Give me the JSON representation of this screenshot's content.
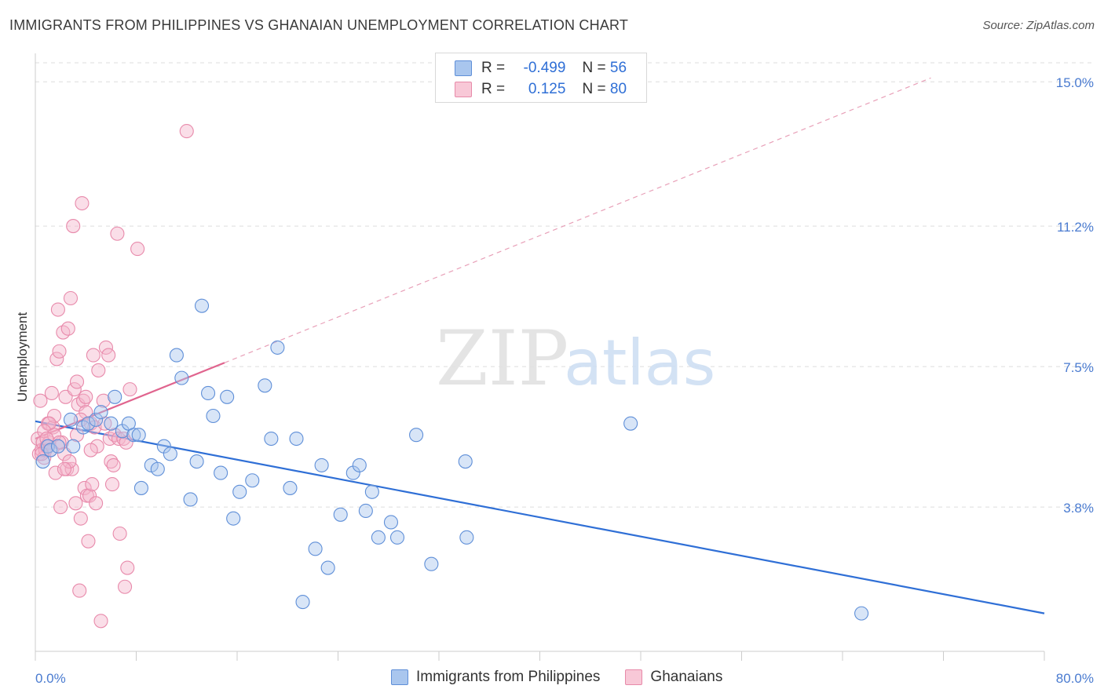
{
  "title": "IMMIGRANTS FROM PHILIPPINES VS GHANAIAN UNEMPLOYMENT CORRELATION CHART",
  "source": "Source: ZipAtlas.com",
  "watermark": {
    "zip": "ZIP",
    "atlas": "atlas"
  },
  "legend": {
    "rows": [
      {
        "r_label": "R =",
        "r_value": "-0.499",
        "n_label": "N =",
        "n_value": "56"
      },
      {
        "r_label": "R =",
        "r_value": "0.125",
        "n_label": "N =",
        "n_value": "80"
      }
    ]
  },
  "colors": {
    "blue": "#2f6fd6",
    "blue_fill": "#a9c6ee",
    "pink": "#e0648e",
    "pink_fill": "#f5b6cb",
    "grid": "#dddddd"
  },
  "chart_data": {
    "type": "scatter",
    "title": "IMMIGRANTS FROM PHILIPPINES VS GHANAIAN UNEMPLOYMENT CORRELATION CHART",
    "xlabel": "",
    "ylabel": "Unemployment",
    "xlim": [
      0,
      80
    ],
    "ylim": [
      0,
      15.5
    ],
    "x_tick_labels": [
      "0.0%",
      "80.0%"
    ],
    "y_ticks": [
      3.8,
      7.5,
      11.2,
      15.0
    ],
    "y_tick_labels": [
      "3.8%",
      "7.5%",
      "11.2%",
      "15.0%"
    ],
    "grid": true,
    "legend_position": "top-center",
    "series": [
      {
        "name": "Immigrants from Philippines",
        "color": "#2f6fd6",
        "points": [
          [
            0.6,
            5.0
          ],
          [
            1.0,
            5.4
          ],
          [
            1.2,
            5.3
          ],
          [
            1.8,
            5.4
          ],
          [
            2.8,
            6.1
          ],
          [
            3.0,
            5.4
          ],
          [
            3.8,
            5.9
          ],
          [
            4.2,
            6.0
          ],
          [
            4.8,
            6.1
          ],
          [
            5.2,
            6.3
          ],
          [
            6.0,
            6.0
          ],
          [
            6.3,
            6.7
          ],
          [
            6.9,
            5.8
          ],
          [
            7.4,
            6.0
          ],
          [
            7.8,
            5.7
          ],
          [
            8.2,
            5.7
          ],
          [
            8.4,
            4.3
          ],
          [
            9.2,
            4.9
          ],
          [
            9.7,
            4.8
          ],
          [
            10.2,
            5.4
          ],
          [
            10.7,
            5.2
          ],
          [
            11.2,
            7.8
          ],
          [
            11.6,
            7.2
          ],
          [
            12.3,
            4.0
          ],
          [
            12.8,
            5.0
          ],
          [
            13.2,
            9.1
          ],
          [
            13.7,
            6.8
          ],
          [
            14.1,
            6.2
          ],
          [
            14.7,
            4.7
          ],
          [
            15.2,
            6.7
          ],
          [
            15.7,
            3.5
          ],
          [
            16.2,
            4.2
          ],
          [
            17.2,
            4.5
          ],
          [
            18.2,
            7.0
          ],
          [
            18.7,
            5.6
          ],
          [
            19.2,
            8.0
          ],
          [
            20.2,
            4.3
          ],
          [
            20.7,
            5.6
          ],
          [
            21.2,
            1.3
          ],
          [
            22.2,
            2.7
          ],
          [
            22.7,
            4.9
          ],
          [
            23.2,
            2.2
          ],
          [
            24.2,
            3.6
          ],
          [
            25.2,
            4.7
          ],
          [
            25.7,
            4.9
          ],
          [
            26.2,
            3.7
          ],
          [
            26.7,
            4.2
          ],
          [
            27.2,
            3.0
          ],
          [
            28.2,
            3.4
          ],
          [
            28.7,
            3.0
          ],
          [
            30.2,
            5.7
          ],
          [
            31.4,
            2.3
          ],
          [
            34.1,
            5.0
          ],
          [
            34.2,
            3.0
          ],
          [
            47.2,
            6.0
          ],
          [
            65.5,
            1.0
          ]
        ],
        "trend": {
          "x0": 0,
          "y0": 6.06,
          "x1": 80,
          "y1": 1.0
        }
      },
      {
        "name": "Ghanaians",
        "color": "#e0648e",
        "points": [
          [
            0.2,
            5.6
          ],
          [
            0.3,
            5.2
          ],
          [
            0.4,
            6.6
          ],
          [
            0.5,
            5.3
          ],
          [
            0.6,
            5.5
          ],
          [
            0.7,
            5.1
          ],
          [
            0.8,
            5.3
          ],
          [
            0.9,
            5.4
          ],
          [
            1.0,
            6.0
          ],
          [
            1.1,
            5.5
          ],
          [
            1.2,
            5.3
          ],
          [
            1.3,
            6.8
          ],
          [
            1.4,
            5.9
          ],
          [
            1.5,
            6.2
          ],
          [
            1.6,
            4.7
          ],
          [
            1.7,
            7.7
          ],
          [
            1.8,
            9.0
          ],
          [
            1.9,
            7.9
          ],
          [
            2.0,
            3.8
          ],
          [
            2.1,
            5.5
          ],
          [
            2.2,
            8.4
          ],
          [
            2.3,
            5.2
          ],
          [
            2.4,
            6.7
          ],
          [
            2.5,
            4.8
          ],
          [
            2.6,
            8.5
          ],
          [
            2.8,
            9.3
          ],
          [
            2.9,
            4.8
          ],
          [
            3.0,
            11.2
          ],
          [
            3.1,
            6.9
          ],
          [
            3.2,
            3.9
          ],
          [
            3.3,
            5.7
          ],
          [
            3.4,
            6.5
          ],
          [
            3.5,
            1.6
          ],
          [
            3.6,
            3.5
          ],
          [
            3.7,
            11.8
          ],
          [
            3.8,
            6.6
          ],
          [
            3.9,
            4.3
          ],
          [
            4.0,
            6.3
          ],
          [
            4.1,
            4.1
          ],
          [
            4.2,
            2.9
          ],
          [
            4.3,
            4.1
          ],
          [
            4.4,
            6.0
          ],
          [
            4.5,
            4.4
          ],
          [
            4.6,
            7.8
          ],
          [
            4.7,
            5.9
          ],
          [
            4.8,
            3.9
          ],
          [
            4.9,
            5.4
          ],
          [
            5.0,
            7.4
          ],
          [
            5.2,
            0.8
          ],
          [
            5.4,
            6.6
          ],
          [
            5.6,
            8.0
          ],
          [
            5.8,
            7.8
          ],
          [
            5.9,
            5.6
          ],
          [
            6.0,
            5.0
          ],
          [
            6.1,
            4.4
          ],
          [
            6.2,
            4.9
          ],
          [
            6.3,
            5.7
          ],
          [
            6.5,
            11.0
          ],
          [
            6.6,
            5.6
          ],
          [
            6.7,
            3.1
          ],
          [
            7.0,
            5.6
          ],
          [
            7.1,
            1.7
          ],
          [
            7.2,
            5.5
          ],
          [
            7.3,
            2.2
          ],
          [
            7.5,
            6.9
          ],
          [
            8.1,
            10.6
          ],
          [
            12.0,
            13.7
          ],
          [
            1.1,
            6.0
          ],
          [
            0.7,
            5.8
          ],
          [
            1.5,
            5.7
          ],
          [
            2.7,
            5.0
          ],
          [
            3.3,
            7.1
          ],
          [
            4.0,
            6.7
          ],
          [
            0.5,
            5.2
          ],
          [
            1.9,
            5.5
          ],
          [
            2.3,
            4.8
          ],
          [
            3.6,
            6.1
          ],
          [
            4.4,
            5.3
          ],
          [
            5.5,
            6.0
          ],
          [
            0.9,
            5.6
          ]
        ],
        "trend": {
          "x0": 0,
          "y0": 5.6,
          "x1": 15,
          "y1": 7.6
        },
        "trend_extension": {
          "x0": 15,
          "y0": 7.6,
          "x1": 71,
          "y1": 15.1
        }
      }
    ]
  },
  "bottom_legend": [
    "Immigrants from Philippines",
    "Ghanaians"
  ]
}
